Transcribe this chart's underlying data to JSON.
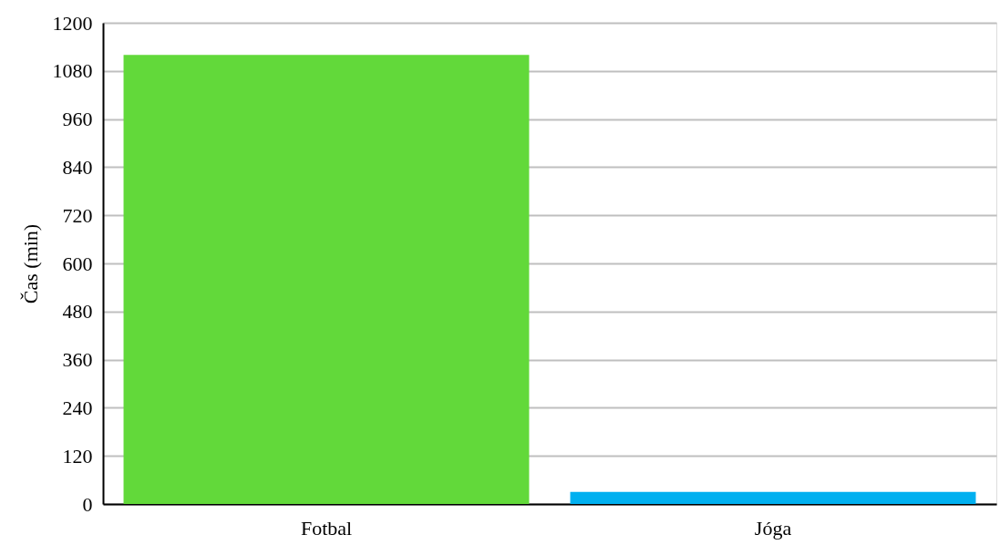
{
  "chart_data": {
    "type": "bar",
    "ylabel": "Čas (min)",
    "categories": [
      "Fotbal",
      "Jóga"
    ],
    "values": [
      1120,
      30
    ],
    "colors": [
      "#62d93a",
      "#00b0f0"
    ],
    "ylim": [
      0,
      1200
    ],
    "yticks": [
      0,
      120,
      240,
      360,
      480,
      600,
      720,
      840,
      960,
      1080,
      1200
    ],
    "grid": "y"
  }
}
